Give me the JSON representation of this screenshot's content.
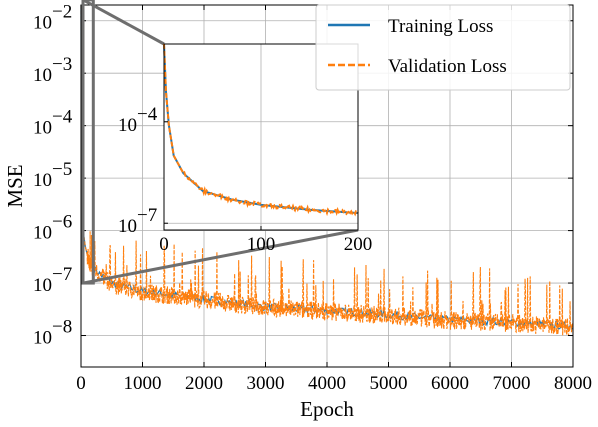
{
  "chart_data": {
    "type": "line",
    "xlabel": "Epoch",
    "ylabel": "MSE",
    "yscale": "log",
    "xlim": [
      0,
      8000
    ],
    "ylim_exponent": [
      -8.6,
      -1.7
    ],
    "xticks": [
      0,
      1000,
      2000,
      3000,
      4000,
      5000,
      6000,
      7000,
      8000
    ],
    "xtick_labels": [
      "0",
      "1000",
      "2000",
      "3000",
      "4000",
      "5000",
      "6000",
      "7000",
      "8000"
    ],
    "yticks_exponent": [
      -8,
      -7,
      -6,
      -5,
      -4,
      -3,
      -2
    ],
    "ytick_labels": [
      {
        "base": "10",
        "exp": "−8"
      },
      {
        "base": "10",
        "exp": "−7"
      },
      {
        "base": "10",
        "exp": "−6"
      },
      {
        "base": "10",
        "exp": "−5"
      },
      {
        "base": "10",
        "exp": "−4"
      },
      {
        "base": "10",
        "exp": "−3"
      },
      {
        "base": "10",
        "exp": "−2"
      }
    ],
    "grid": true,
    "legend_position": "top-right",
    "series": [
      {
        "name": "Training Loss",
        "color": "#1f77b4",
        "style": "solid",
        "x": [
          0,
          2,
          5,
          10,
          20,
          40,
          70,
          100,
          150,
          200,
          300,
          500,
          1000,
          2000,
          3000,
          4000,
          5000,
          6000,
          7000,
          8000
        ],
        "y": [
          0.02,
          0.0008,
          8e-05,
          1e-05,
          3e-06,
          9e-07,
          5e-07,
          3.5e-07,
          2.5e-07,
          2e-07,
          1.5e-07,
          1e-07,
          7e-08,
          5e-08,
          3.5e-08,
          3e-08,
          2.5e-08,
          2e-08,
          1.8e-08,
          1.5e-08
        ]
      },
      {
        "name": "Validation Loss",
        "color": "#ff7f0e",
        "style": "dashed",
        "x": [
          0,
          2,
          5,
          10,
          20,
          40,
          70,
          100,
          150,
          200,
          300,
          500,
          1000,
          2000,
          3000,
          4000,
          5000,
          6000,
          7000,
          8000
        ],
        "y": [
          0.02,
          0.0008,
          8e-05,
          1e-05,
          3e-06,
          9e-07,
          5e-07,
          3.5e-07,
          2.5e-07,
          2e-07,
          1.5e-07,
          1e-07,
          7e-08,
          5e-08,
          3.5e-08,
          3e-08,
          2.5e-08,
          2e-08,
          1.8e-08,
          1.5e-08
        ]
      }
    ],
    "inset": {
      "xlim": [
        0,
        200
      ],
      "ylim_exponent": [
        -7.2,
        -1.7
      ],
      "xticks": [
        0,
        100,
        200
      ],
      "xtick_labels": [
        "0",
        "100",
        "200"
      ],
      "yticks_exponent": [
        -4,
        -7
      ],
      "ytick_labels": [
        {
          "base": "10",
          "exp": "−4"
        },
        {
          "base": "10",
          "exp": "−7"
        }
      ],
      "zoom_box": {
        "x": [
          0,
          200
        ],
        "y": [
          0.025,
          1e-07
        ]
      }
    }
  }
}
